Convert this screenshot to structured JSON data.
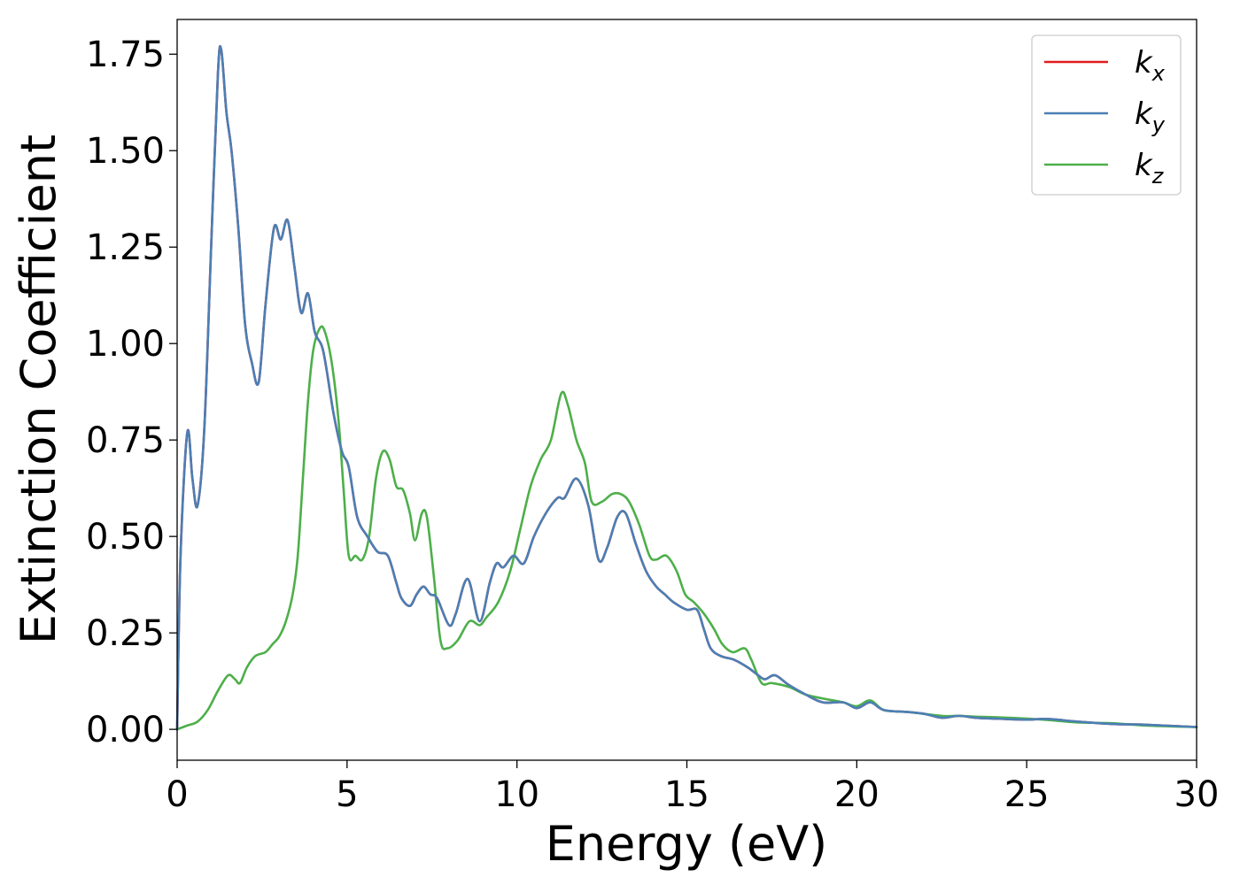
{
  "chart_data": {
    "type": "line",
    "title": "",
    "xlabel": "Energy (eV)",
    "ylabel": "Extinction Coefficient",
    "xlim": [
      0,
      30
    ],
    "ylim": [
      -0.08,
      1.84
    ],
    "x_ticks": [
      0,
      5,
      10,
      15,
      20,
      25,
      30
    ],
    "y_ticks": [
      0.0,
      0.25,
      0.5,
      0.75,
      1.0,
      1.25,
      1.5,
      1.75
    ],
    "x_tick_labels": [
      "0",
      "5",
      "10",
      "15",
      "20",
      "25",
      "30"
    ],
    "y_tick_labels": [
      "0.00",
      "0.25",
      "0.50",
      "0.75",
      "1.00",
      "1.25",
      "1.50",
      "1.75"
    ],
    "grid": false,
    "legend_position": "top-right",
    "series": [
      {
        "name": "k_x",
        "legend_base": "k",
        "legend_sub": "x",
        "color": "#e41a1c",
        "points": [
          [
            0,
            0.0
          ],
          [
            0.1,
            0.45
          ],
          [
            0.3,
            0.77
          ],
          [
            0.45,
            0.65
          ],
          [
            0.6,
            0.58
          ],
          [
            0.8,
            0.78
          ],
          [
            1.0,
            1.25
          ],
          [
            1.2,
            1.7
          ],
          [
            1.3,
            1.76
          ],
          [
            1.45,
            1.6
          ],
          [
            1.6,
            1.5
          ],
          [
            1.8,
            1.3
          ],
          [
            2.0,
            1.05
          ],
          [
            2.2,
            0.95
          ],
          [
            2.4,
            0.9
          ],
          [
            2.6,
            1.1
          ],
          [
            2.85,
            1.3
          ],
          [
            3.05,
            1.27
          ],
          [
            3.25,
            1.32
          ],
          [
            3.45,
            1.2
          ],
          [
            3.65,
            1.08
          ],
          [
            3.85,
            1.13
          ],
          [
            4.05,
            1.03
          ],
          [
            4.3,
            0.98
          ],
          [
            4.6,
            0.82
          ],
          [
            4.85,
            0.72
          ],
          [
            5.05,
            0.68
          ],
          [
            5.3,
            0.55
          ],
          [
            5.6,
            0.5
          ],
          [
            5.9,
            0.46
          ],
          [
            6.2,
            0.45
          ],
          [
            6.45,
            0.38
          ],
          [
            6.6,
            0.34
          ],
          [
            6.85,
            0.32
          ],
          [
            7.05,
            0.35
          ],
          [
            7.25,
            0.37
          ],
          [
            7.45,
            0.35
          ],
          [
            7.65,
            0.34
          ],
          [
            8.0,
            0.27
          ],
          [
            8.2,
            0.3
          ],
          [
            8.55,
            0.39
          ],
          [
            8.9,
            0.28
          ],
          [
            9.2,
            0.38
          ],
          [
            9.4,
            0.43
          ],
          [
            9.6,
            0.42
          ],
          [
            9.9,
            0.45
          ],
          [
            10.2,
            0.43
          ],
          [
            10.5,
            0.5
          ],
          [
            10.85,
            0.56
          ],
          [
            11.2,
            0.6
          ],
          [
            11.4,
            0.6
          ],
          [
            11.75,
            0.65
          ],
          [
            12.1,
            0.58
          ],
          [
            12.4,
            0.44
          ],
          [
            12.65,
            0.47
          ],
          [
            12.95,
            0.55
          ],
          [
            13.2,
            0.56
          ],
          [
            13.5,
            0.48
          ],
          [
            13.8,
            0.41
          ],
          [
            14.1,
            0.37
          ],
          [
            14.35,
            0.35
          ],
          [
            14.6,
            0.33
          ],
          [
            15.0,
            0.31
          ],
          [
            15.3,
            0.31
          ],
          [
            15.5,
            0.26
          ],
          [
            15.7,
            0.21
          ],
          [
            16.0,
            0.19
          ],
          [
            16.4,
            0.18
          ],
          [
            16.8,
            0.16
          ],
          [
            17.1,
            0.14
          ],
          [
            17.3,
            0.13
          ],
          [
            17.6,
            0.14
          ],
          [
            18.0,
            0.115
          ],
          [
            18.5,
            0.09
          ],
          [
            19.0,
            0.07
          ],
          [
            19.6,
            0.07
          ],
          [
            20.0,
            0.055
          ],
          [
            20.4,
            0.07
          ],
          [
            20.8,
            0.05
          ],
          [
            21.5,
            0.045
          ],
          [
            22.0,
            0.04
          ],
          [
            22.5,
            0.03
          ],
          [
            23.0,
            0.035
          ],
          [
            23.5,
            0.03
          ],
          [
            24.0,
            0.028
          ],
          [
            25.0,
            0.025
          ],
          [
            25.6,
            0.027
          ],
          [
            26.5,
            0.02
          ],
          [
            27.5,
            0.014
          ],
          [
            28.5,
            0.012
          ],
          [
            30.0,
            0.006
          ]
        ]
      },
      {
        "name": "k_y",
        "legend_base": "k",
        "legend_sub": "y",
        "color": "#4a7fb5",
        "points": [
          [
            0,
            0.0
          ],
          [
            0.1,
            0.45
          ],
          [
            0.3,
            0.77
          ],
          [
            0.45,
            0.65
          ],
          [
            0.6,
            0.58
          ],
          [
            0.8,
            0.78
          ],
          [
            1.0,
            1.25
          ],
          [
            1.2,
            1.7
          ],
          [
            1.3,
            1.76
          ],
          [
            1.45,
            1.6
          ],
          [
            1.6,
            1.5
          ],
          [
            1.8,
            1.3
          ],
          [
            2.0,
            1.05
          ],
          [
            2.2,
            0.95
          ],
          [
            2.4,
            0.9
          ],
          [
            2.6,
            1.1
          ],
          [
            2.85,
            1.3
          ],
          [
            3.05,
            1.27
          ],
          [
            3.25,
            1.32
          ],
          [
            3.45,
            1.2
          ],
          [
            3.65,
            1.08
          ],
          [
            3.85,
            1.13
          ],
          [
            4.05,
            1.03
          ],
          [
            4.3,
            0.98
          ],
          [
            4.6,
            0.82
          ],
          [
            4.85,
            0.72
          ],
          [
            5.05,
            0.68
          ],
          [
            5.3,
            0.55
          ],
          [
            5.6,
            0.5
          ],
          [
            5.9,
            0.46
          ],
          [
            6.2,
            0.45
          ],
          [
            6.45,
            0.38
          ],
          [
            6.6,
            0.34
          ],
          [
            6.85,
            0.32
          ],
          [
            7.05,
            0.35
          ],
          [
            7.25,
            0.37
          ],
          [
            7.45,
            0.35
          ],
          [
            7.65,
            0.34
          ],
          [
            8.0,
            0.27
          ],
          [
            8.2,
            0.3
          ],
          [
            8.55,
            0.39
          ],
          [
            8.9,
            0.28
          ],
          [
            9.2,
            0.38
          ],
          [
            9.4,
            0.43
          ],
          [
            9.6,
            0.42
          ],
          [
            9.9,
            0.45
          ],
          [
            10.2,
            0.43
          ],
          [
            10.5,
            0.5
          ],
          [
            10.85,
            0.56
          ],
          [
            11.2,
            0.6
          ],
          [
            11.4,
            0.6
          ],
          [
            11.75,
            0.65
          ],
          [
            12.1,
            0.58
          ],
          [
            12.4,
            0.44
          ],
          [
            12.65,
            0.47
          ],
          [
            12.95,
            0.55
          ],
          [
            13.2,
            0.56
          ],
          [
            13.5,
            0.48
          ],
          [
            13.8,
            0.41
          ],
          [
            14.1,
            0.37
          ],
          [
            14.35,
            0.35
          ],
          [
            14.6,
            0.33
          ],
          [
            15.0,
            0.31
          ],
          [
            15.3,
            0.31
          ],
          [
            15.5,
            0.26
          ],
          [
            15.7,
            0.21
          ],
          [
            16.0,
            0.19
          ],
          [
            16.4,
            0.18
          ],
          [
            16.8,
            0.16
          ],
          [
            17.1,
            0.14
          ],
          [
            17.3,
            0.13
          ],
          [
            17.6,
            0.14
          ],
          [
            18.0,
            0.115
          ],
          [
            18.5,
            0.09
          ],
          [
            19.0,
            0.07
          ],
          [
            19.6,
            0.07
          ],
          [
            20.0,
            0.055
          ],
          [
            20.4,
            0.07
          ],
          [
            20.8,
            0.05
          ],
          [
            21.5,
            0.045
          ],
          [
            22.0,
            0.04
          ],
          [
            22.5,
            0.03
          ],
          [
            23.0,
            0.035
          ],
          [
            23.5,
            0.03
          ],
          [
            24.0,
            0.028
          ],
          [
            25.0,
            0.025
          ],
          [
            25.6,
            0.027
          ],
          [
            26.5,
            0.02
          ],
          [
            27.5,
            0.014
          ],
          [
            28.5,
            0.012
          ],
          [
            30.0,
            0.006
          ]
        ]
      },
      {
        "name": "k_z",
        "legend_base": "k",
        "legend_sub": "z",
        "color": "#4daf4a",
        "points": [
          [
            0,
            0.0
          ],
          [
            0.3,
            0.01
          ],
          [
            0.6,
            0.02
          ],
          [
            0.9,
            0.05
          ],
          [
            1.2,
            0.1
          ],
          [
            1.5,
            0.14
          ],
          [
            1.7,
            0.13
          ],
          [
            1.85,
            0.12
          ],
          [
            2.05,
            0.16
          ],
          [
            2.3,
            0.19
          ],
          [
            2.6,
            0.2
          ],
          [
            2.8,
            0.22
          ],
          [
            3.0,
            0.24
          ],
          [
            3.2,
            0.28
          ],
          [
            3.4,
            0.35
          ],
          [
            3.55,
            0.45
          ],
          [
            3.7,
            0.65
          ],
          [
            3.85,
            0.85
          ],
          [
            4.0,
            0.98
          ],
          [
            4.2,
            1.04
          ],
          [
            4.35,
            1.03
          ],
          [
            4.55,
            0.95
          ],
          [
            4.75,
            0.8
          ],
          [
            4.9,
            0.62
          ],
          [
            5.05,
            0.45
          ],
          [
            5.25,
            0.45
          ],
          [
            5.45,
            0.44
          ],
          [
            5.65,
            0.5
          ],
          [
            5.85,
            0.65
          ],
          [
            6.05,
            0.72
          ],
          [
            6.25,
            0.7
          ],
          [
            6.45,
            0.63
          ],
          [
            6.65,
            0.62
          ],
          [
            6.85,
            0.56
          ],
          [
            7.0,
            0.49
          ],
          [
            7.2,
            0.56
          ],
          [
            7.35,
            0.55
          ],
          [
            7.55,
            0.4
          ],
          [
            7.75,
            0.23
          ],
          [
            7.95,
            0.21
          ],
          [
            8.25,
            0.23
          ],
          [
            8.6,
            0.28
          ],
          [
            8.9,
            0.27
          ],
          [
            9.1,
            0.29
          ],
          [
            9.45,
            0.33
          ],
          [
            9.8,
            0.41
          ],
          [
            10.1,
            0.52
          ],
          [
            10.4,
            0.63
          ],
          [
            10.7,
            0.7
          ],
          [
            11.0,
            0.75
          ],
          [
            11.3,
            0.87
          ],
          [
            11.5,
            0.84
          ],
          [
            11.75,
            0.75
          ],
          [
            12.0,
            0.69
          ],
          [
            12.2,
            0.59
          ],
          [
            12.5,
            0.59
          ],
          [
            12.8,
            0.61
          ],
          [
            13.05,
            0.61
          ],
          [
            13.3,
            0.59
          ],
          [
            13.6,
            0.53
          ],
          [
            13.9,
            0.45
          ],
          [
            14.1,
            0.44
          ],
          [
            14.4,
            0.45
          ],
          [
            14.7,
            0.41
          ],
          [
            14.95,
            0.35
          ],
          [
            15.2,
            0.33
          ],
          [
            15.5,
            0.3
          ],
          [
            15.8,
            0.26
          ],
          [
            16.05,
            0.22
          ],
          [
            16.35,
            0.2
          ],
          [
            16.7,
            0.21
          ],
          [
            16.9,
            0.18
          ],
          [
            17.2,
            0.12
          ],
          [
            17.5,
            0.12
          ],
          [
            18.0,
            0.11
          ],
          [
            18.5,
            0.09
          ],
          [
            19.0,
            0.08
          ],
          [
            19.6,
            0.07
          ],
          [
            20.0,
            0.06
          ],
          [
            20.4,
            0.075
          ],
          [
            20.8,
            0.05
          ],
          [
            21.5,
            0.045
          ],
          [
            22.5,
            0.035
          ],
          [
            23.0,
            0.035
          ],
          [
            23.5,
            0.033
          ],
          [
            24.5,
            0.03
          ],
          [
            25.5,
            0.025
          ],
          [
            26.5,
            0.018
          ],
          [
            27.5,
            0.016
          ],
          [
            28.5,
            0.01
          ],
          [
            30.0,
            0.006
          ]
        ]
      }
    ]
  }
}
